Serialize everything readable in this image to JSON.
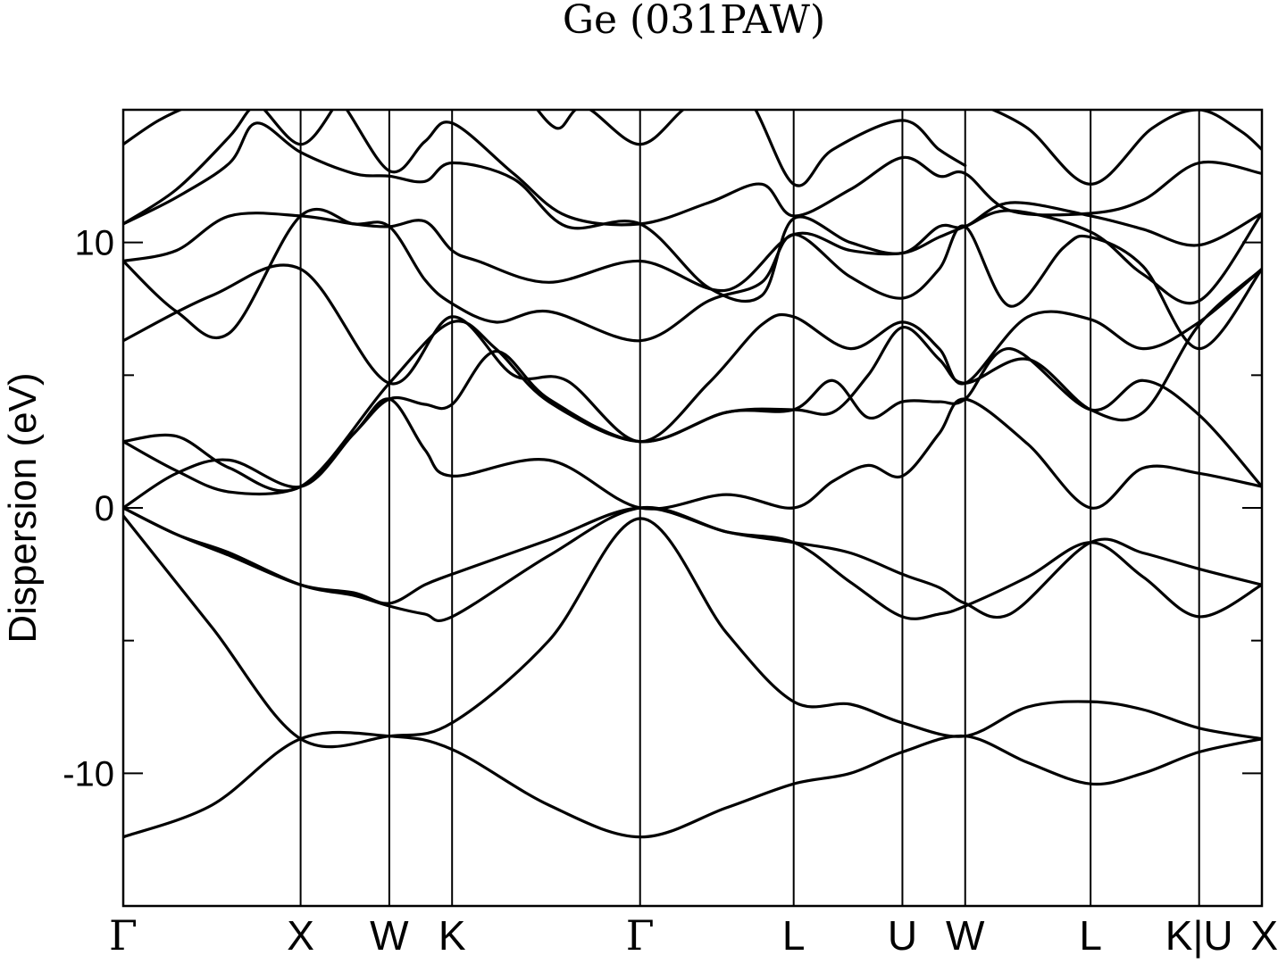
{
  "chart_data": {
    "type": "line",
    "title": "Ge (031PAW)",
    "xlabel": "",
    "ylabel": "Dispersion (eV)",
    "ylim": [
      -15,
      15
    ],
    "yticks": [
      -10,
      0,
      10
    ],
    "yticks_labels": [
      "-10",
      "0",
      "10"
    ],
    "yminor_ticks": [
      -5,
      5
    ],
    "grid": false,
    "kpoints": [
      "Γ",
      "X",
      "W",
      "K",
      "Γ",
      "L",
      "U",
      "W",
      "L",
      "K|U",
      "X"
    ],
    "kpoint_positions": [
      0.0,
      1.0,
      1.5,
      1.854,
      2.914,
      3.78,
      4.393,
      4.747,
      5.454,
      6.066,
      6.42
    ],
    "x_range": [
      0.0,
      6.42
    ],
    "series": [
      {
        "x": [
          0,
          0.5,
          1,
          1.5,
          1.854,
          2.4,
          2.914,
          3.4,
          3.78,
          4.1,
          4.393,
          4.747,
          5.1,
          5.454,
          5.75,
          6.066,
          6.42
        ],
        "values": [
          -12.4,
          -11.2,
          -8.7,
          -8.6,
          -9.1,
          -11.2,
          -12.4,
          -11.3,
          -10.4,
          -10.0,
          -9.2,
          -8.6,
          -9.6,
          -10.4,
          -10.0,
          -9.2,
          -8.7
        ]
      },
      {
        "x": [
          0,
          0.5,
          1,
          1.5,
          1.854,
          2.4,
          2.914,
          3.4,
          3.78,
          4.1,
          4.393,
          4.747,
          5.1,
          5.454,
          5.75,
          6.066,
          6.42
        ],
        "values": [
          -0.3,
          -4.5,
          -8.7,
          -8.6,
          -8.1,
          -5.0,
          -0.4,
          -4.7,
          -7.3,
          -7.4,
          -8.1,
          -8.6,
          -7.5,
          -7.3,
          -7.6,
          -8.3,
          -8.7
        ]
      },
      {
        "x": [
          0,
          0.3,
          0.6,
          1,
          1.3,
          1.5,
          1.7,
          1.854,
          2.4,
          2.914,
          3.4,
          3.78,
          4.1,
          4.393,
          4.6,
          4.747,
          5.1,
          5.454,
          5.75,
          6.066,
          6.42
        ],
        "values": [
          0,
          -1.0,
          -1.7,
          -2.9,
          -3.3,
          -3.7,
          -4.0,
          -4.1,
          -1.8,
          0,
          -0.9,
          -1.3,
          -2.8,
          -4.1,
          -4.0,
          -3.7,
          -2.6,
          -1.3,
          -2.6,
          -4.1,
          -2.9
        ]
      },
      {
        "x": [
          0,
          0.3,
          0.6,
          1,
          1.3,
          1.5,
          1.7,
          1.854,
          2.4,
          2.914,
          3.4,
          3.78,
          4.1,
          4.393,
          4.6,
          4.747,
          5.0,
          5.454,
          5.75,
          6.066,
          6.42
        ],
        "values": [
          0,
          -1.0,
          -1.8,
          -2.9,
          -3.2,
          -3.6,
          -2.9,
          -2.5,
          -1.2,
          0,
          -0.9,
          -1.3,
          -1.7,
          -2.5,
          -3.0,
          -3.6,
          -4.0,
          -1.3,
          -1.7,
          -2.3,
          -2.9
        ]
      },
      {
        "x": [
          0,
          0.3,
          0.6,
          1,
          1.3,
          1.5,
          1.7,
          1.854,
          2.4,
          2.914,
          3.4,
          3.78,
          4.0,
          4.2,
          4.393,
          4.6,
          4.747,
          5.1,
          5.454,
          5.75,
          6.066,
          6.42
        ],
        "values": [
          0,
          1.3,
          1.8,
          0.8,
          2.8,
          4.1,
          2.2,
          1.2,
          1.8,
          0,
          0.5,
          0,
          1.0,
          1.6,
          1.2,
          2.8,
          4.1,
          2.4,
          0,
          1.5,
          1.3,
          0.8
        ]
      },
      {
        "x": [
          0,
          0.3,
          0.6,
          1,
          1.3,
          1.5,
          1.7,
          1.854,
          2.1,
          2.4,
          2.914,
          3.4,
          3.78,
          4.0,
          4.2,
          4.393,
          4.6,
          4.747,
          5.0,
          5.454,
          5.75,
          6.066,
          6.42
        ],
        "values": [
          2.5,
          1.4,
          0.6,
          0.8,
          2.8,
          4.1,
          3.9,
          3.9,
          5.9,
          4.1,
          2.5,
          3.6,
          3.7,
          4.8,
          3.4,
          4.0,
          4.0,
          4.1,
          6.0,
          3.7,
          4.8,
          3.5,
          0.8
        ]
      },
      {
        "x": [
          0,
          0.3,
          0.6,
          1,
          1.5,
          1.854,
          2.1,
          2.4,
          2.914,
          3.4,
          3.78,
          4.0,
          4.2,
          4.393,
          4.6,
          4.747,
          5.1,
          5.454,
          5.75,
          6.066,
          6.42
        ],
        "values": [
          2.5,
          2.7,
          1.5,
          0.8,
          4.7,
          7.0,
          6.0,
          4.0,
          2.5,
          3.6,
          3.7,
          3.6,
          5.0,
          6.8,
          5.6,
          4.7,
          5.6,
          3.7,
          3.6,
          6.9,
          9.0
        ]
      },
      {
        "x": [
          0,
          0.5,
          1,
          1.5,
          1.854,
          2.2,
          2.5,
          2.914,
          3.3,
          3.6,
          3.78,
          4.1,
          4.393,
          4.6,
          4.747,
          5.1,
          5.454,
          5.75,
          6.066,
          6.42
        ],
        "values": [
          6.3,
          8.0,
          9.0,
          4.7,
          7.2,
          5.0,
          4.8,
          2.5,
          4.7,
          6.9,
          7.2,
          6.0,
          7.0,
          6.0,
          4.7,
          7.2,
          7.1,
          6.0,
          7.0,
          9.0
        ]
      },
      {
        "x": [
          0,
          0.3,
          0.6,
          1,
          1.3,
          1.5,
          1.7,
          1.854,
          2.1,
          2.4,
          2.914,
          3.3,
          3.6,
          3.78,
          4.1,
          4.393,
          4.6,
          4.747,
          5.0,
          5.3,
          5.454,
          5.75,
          6.066,
          6.42
        ],
        "values": [
          9.3,
          7.4,
          6.6,
          11.0,
          10.7,
          10.6,
          8.6,
          7.7,
          7.0,
          7.4,
          6.3,
          7.8,
          8.5,
          10.3,
          8.7,
          7.9,
          9.0,
          10.6,
          7.6,
          9.8,
          10.2,
          9.1,
          6.0,
          9.0
        ]
      },
      {
        "x": [
          0,
          0.3,
          0.6,
          1,
          1.3,
          1.5,
          1.7,
          1.854,
          2.0,
          2.4,
          2.914,
          3.4,
          3.78,
          4.1,
          4.393,
          4.6,
          4.747,
          5.0,
          5.454,
          5.75,
          6.066,
          6.42
        ],
        "values": [
          9.3,
          9.7,
          11.0,
          11.0,
          10.7,
          10.6,
          10.8,
          9.7,
          9.3,
          8.5,
          9.3,
          8.2,
          10.3,
          9.7,
          9.6,
          10.2,
          10.6,
          11.2,
          10.4,
          8.8,
          7.8,
          11.1
        ]
      },
      {
        "x": [
          0,
          0.3,
          0.6,
          0.75,
          1,
          1.3,
          1.5,
          1.7,
          1.854,
          2.2,
          2.5,
          2.914,
          3.3,
          3.6,
          3.78,
          4.1,
          4.393,
          4.6,
          4.747,
          5.0,
          5.454,
          5.75,
          6.066,
          6.42
        ],
        "values": [
          10.7,
          11.7,
          13.0,
          14.5,
          13.4,
          12.6,
          12.5,
          12.3,
          13.0,
          12.4,
          10.6,
          10.7,
          8.3,
          8.0,
          10.9,
          10.0,
          9.6,
          10.6,
          10.6,
          11.5,
          11.0,
          10.5,
          9.9,
          11.1
        ]
      },
      {
        "x": [
          0,
          0.3,
          0.6,
          0.75,
          1,
          1.2,
          1.5,
          1.7,
          1.854,
          2.2,
          2.5,
          2.914,
          3.3,
          3.6,
          3.78,
          4.1,
          4.393,
          4.6,
          4.747,
          5.0,
          5.454,
          5.75,
          6.066,
          6.42
        ],
        "values": [
          10.7,
          12.0,
          14.0,
          15.2,
          15.5,
          15.5,
          12.7,
          13.8,
          14.5,
          12.6,
          11.0,
          10.7,
          11.5,
          12.2,
          11.0,
          12.0,
          13.2,
          12.5,
          12.6,
          11.2,
          11.1,
          11.6,
          13.0,
          12.6
        ]
      },
      {
        "x": [
          0,
          0.2,
          0.4,
          0.6,
          0.75,
          1,
          1.2
        ],
        "values": [
          13.7,
          14.6,
          15.2,
          15.5,
          15.3,
          13.7,
          15.2
        ]
      },
      {
        "x": [
          2.3,
          2.45,
          2.6,
          2.914,
          3.2,
          3.5,
          3.78,
          4.0,
          4.393,
          4.6,
          4.747
        ],
        "values": [
          15.3,
          14.3,
          15.1,
          13.7,
          15.2,
          15.6,
          12.2,
          13.5,
          14.6,
          13.5,
          12.9
        ]
      },
      {
        "x": [
          4.8,
          5.1,
          5.454,
          5.8,
          6.066,
          6.3,
          6.42
        ],
        "values": [
          15.3,
          14.3,
          12.2,
          14.3,
          15.0,
          14.2,
          13.5
        ]
      }
    ]
  }
}
